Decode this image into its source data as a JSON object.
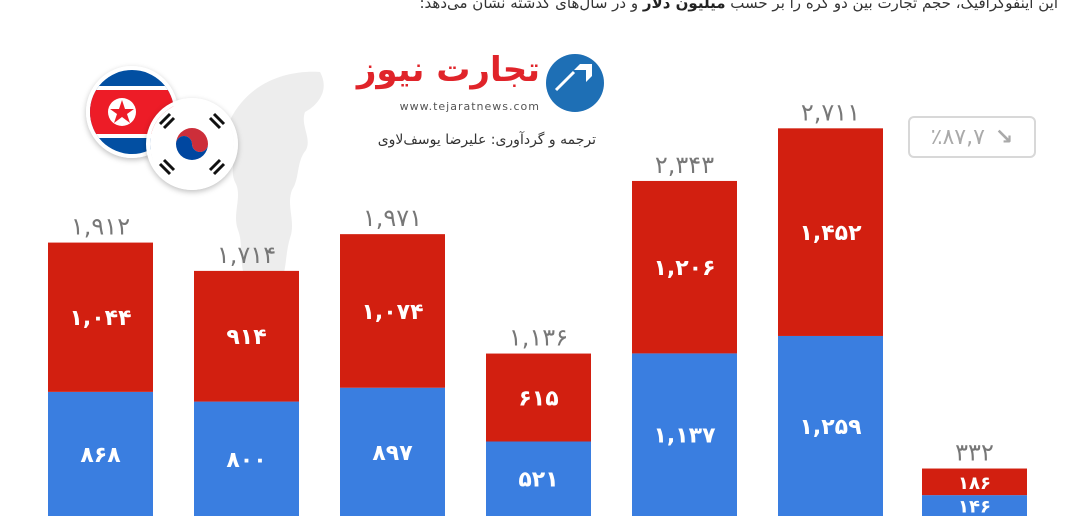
{
  "intro": {
    "part1": "این اینفوگرافیک، حجم تجارت بین دو کره را بر حسب",
    "bold1": "میلیون دلار",
    "part2": "و در سال‌های گذشته نشان می‌دهد:"
  },
  "logo": {
    "name": "تجارت نیوز",
    "url": "www.tejaratnews.com",
    "credit": "ترجمه و گردآوری: علیرضا یوسف‌لاوی"
  },
  "change_badge": {
    "text": "٪۸۷,۷",
    "arrow": "↘"
  },
  "colors": {
    "red": "#d21f10",
    "blue": "#3a7ee0",
    "map": "#ededed"
  },
  "chart_data": {
    "type": "bar",
    "stacked": true,
    "series": [
      {
        "color": "#3a7ee0",
        "values": [
          868,
          800,
          897,
          521,
          1137,
          1259,
          146
        ]
      },
      {
        "color": "#d21f10",
        "values": [
          1044,
          914,
          1074,
          615,
          1206,
          1452,
          186
        ]
      }
    ],
    "totals": [
      1912,
      1714,
      1971,
      1136,
      2343,
      2711,
      332
    ],
    "labels": {
      "series0": [
        "۸۶۸",
        "۸۰۰",
        "۸۹۷",
        "۵۲۱",
        "۱,۱۳۷",
        "۱,۲۵۹",
        "۱۴۶"
      ],
      "series1": [
        "۱,۰۴۴",
        "۹۱۴",
        "۱,۰۷۴",
        "۶۱۵",
        "۱,۲۰۶",
        "۱,۴۵۲",
        "۱۸۶"
      ],
      "totals": [
        "۱,۹۱۲",
        "۱,۷۱۴",
        "۱,۹۷۱",
        "۱,۱۳۶",
        "۲,۳۴۳",
        "۲,۷۱۱",
        "۳۳۲"
      ]
    },
    "ylim": [
      0,
      2800
    ],
    "grid": false,
    "legend": "none"
  }
}
